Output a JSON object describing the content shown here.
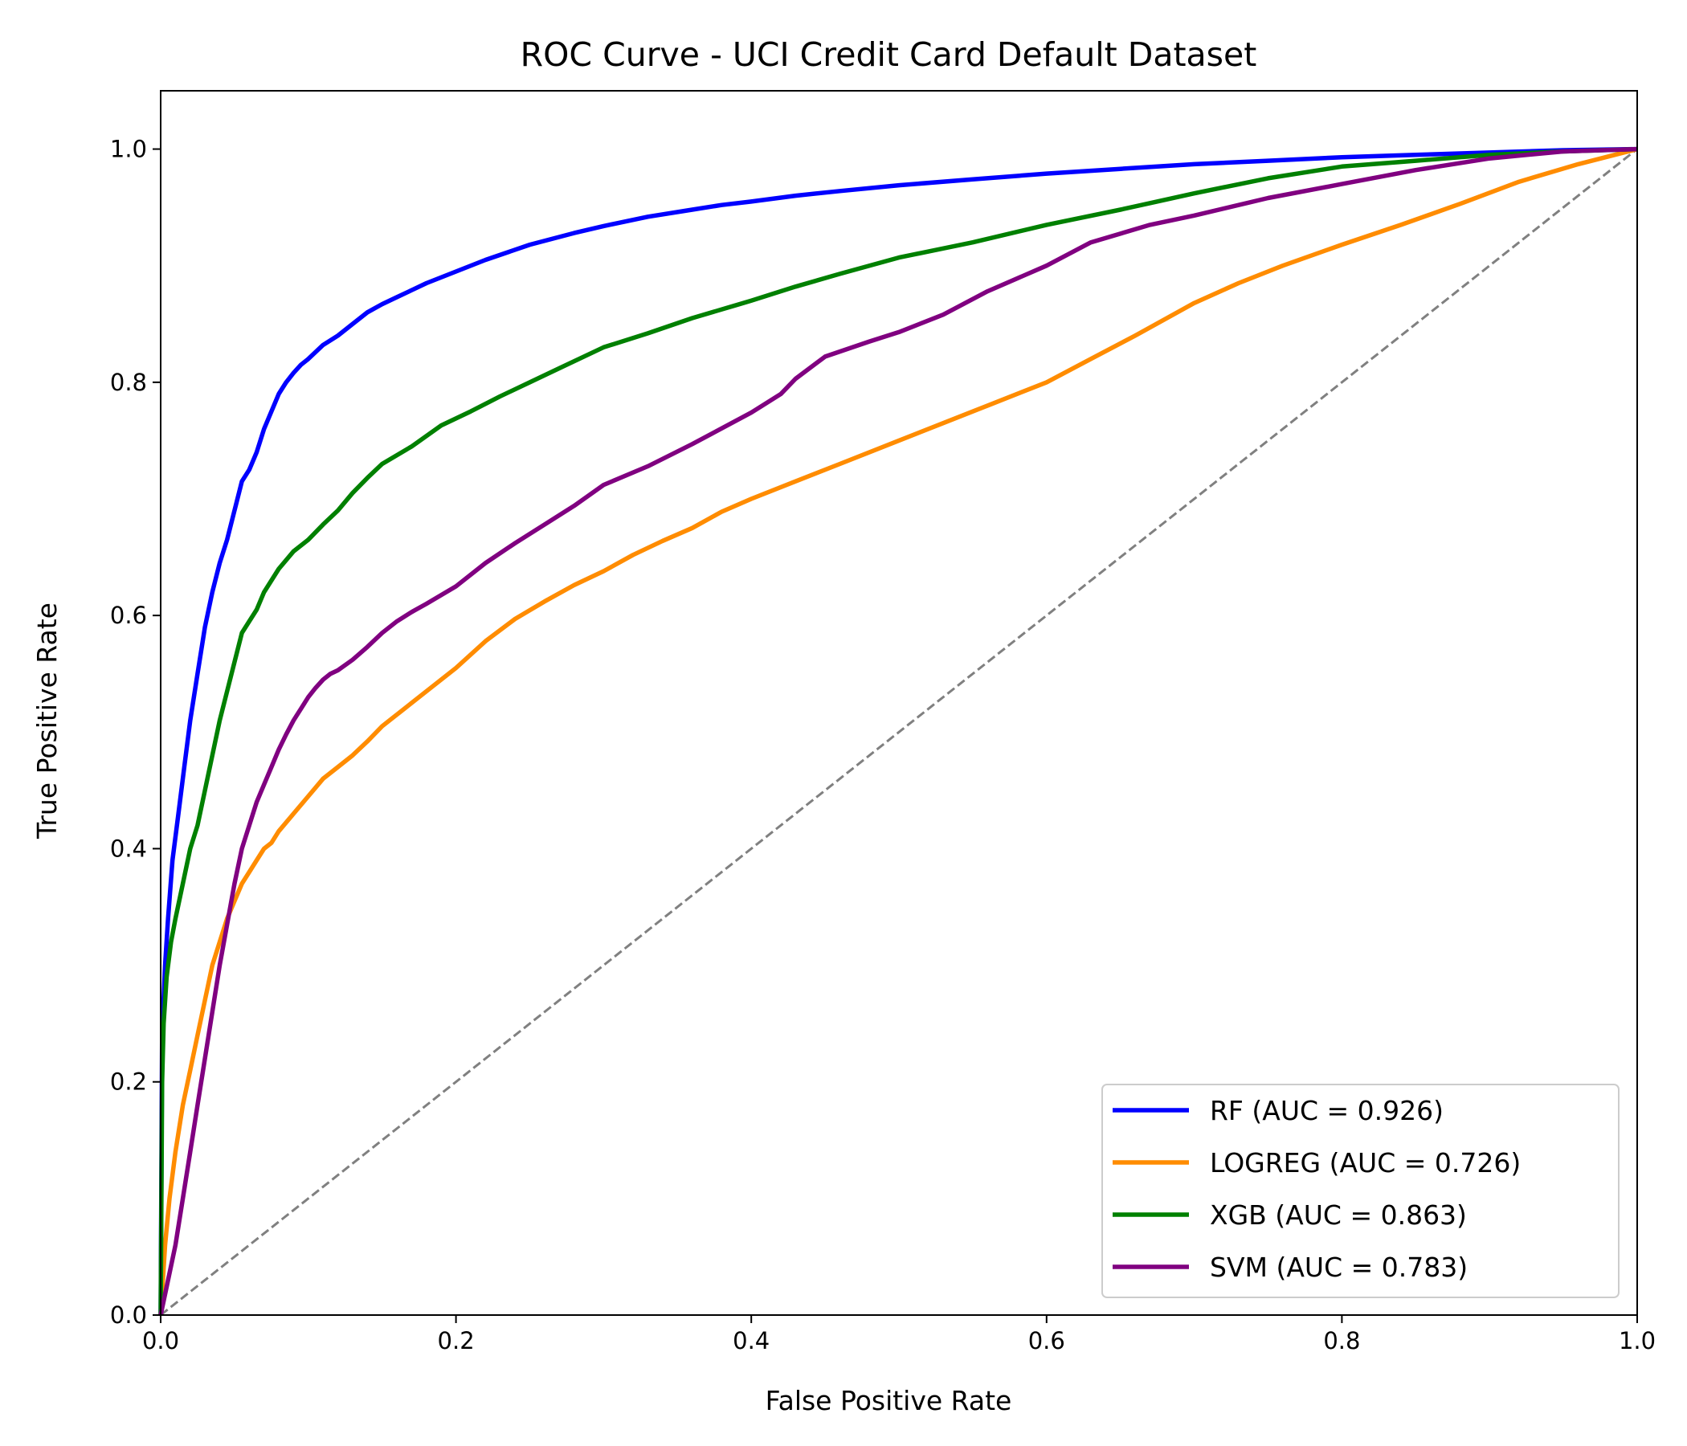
{
  "chart_data": {
    "type": "line",
    "title": "ROC Curve - UCI Credit Card Default Dataset",
    "xlabel": "False Positive Rate",
    "ylabel": "True Positive Rate",
    "xlim": [
      0.0,
      1.0
    ],
    "ylim": [
      0.0,
      1.05
    ],
    "xticks": [
      "0.0",
      "0.2",
      "0.4",
      "0.6",
      "0.8",
      "1.0"
    ],
    "yticks": [
      "0.0",
      "0.2",
      "0.4",
      "0.6",
      "0.8",
      "1.0"
    ],
    "grid": false,
    "legend_position": "lower-right",
    "reference_line": {
      "x": [
        0,
        1
      ],
      "y": [
        0,
        1
      ],
      "color": "#808080",
      "style": "dashed"
    },
    "series": [
      {
        "name": "RF (AUC = 0.926)",
        "color": "#0000ff",
        "x": [
          0.0,
          0.001,
          0.003,
          0.005,
          0.008,
          0.012,
          0.016,
          0.02,
          0.025,
          0.03,
          0.035,
          0.04,
          0.045,
          0.05,
          0.055,
          0.06,
          0.065,
          0.07,
          0.075,
          0.08,
          0.085,
          0.09,
          0.095,
          0.1,
          0.11,
          0.12,
          0.13,
          0.14,
          0.15,
          0.16,
          0.17,
          0.18,
          0.2,
          0.22,
          0.25,
          0.28,
          0.3,
          0.33,
          0.36,
          0.38,
          0.4,
          0.43,
          0.46,
          0.5,
          0.55,
          0.6,
          0.65,
          0.7,
          0.75,
          0.8,
          0.85,
          0.9,
          0.95,
          1.0
        ],
        "y": [
          0.0,
          0.24,
          0.3,
          0.34,
          0.39,
          0.43,
          0.47,
          0.51,
          0.55,
          0.59,
          0.62,
          0.645,
          0.665,
          0.69,
          0.715,
          0.725,
          0.74,
          0.76,
          0.775,
          0.79,
          0.8,
          0.808,
          0.815,
          0.82,
          0.832,
          0.84,
          0.85,
          0.86,
          0.867,
          0.873,
          0.879,
          0.885,
          0.895,
          0.905,
          0.918,
          0.928,
          0.934,
          0.942,
          0.948,
          0.952,
          0.955,
          0.96,
          0.964,
          0.969,
          0.974,
          0.979,
          0.983,
          0.987,
          0.99,
          0.993,
          0.995,
          0.997,
          0.999,
          1.0
        ]
      },
      {
        "name": "LOGREG (AUC = 0.726)",
        "color": "#ff8c00",
        "x": [
          0.0,
          0.003,
          0.006,
          0.01,
          0.015,
          0.02,
          0.025,
          0.03,
          0.035,
          0.04,
          0.045,
          0.05,
          0.055,
          0.06,
          0.065,
          0.07,
          0.075,
          0.08,
          0.09,
          0.1,
          0.11,
          0.12,
          0.13,
          0.14,
          0.15,
          0.16,
          0.18,
          0.2,
          0.22,
          0.24,
          0.26,
          0.28,
          0.3,
          0.32,
          0.34,
          0.36,
          0.38,
          0.4,
          0.43,
          0.46,
          0.5,
          0.53,
          0.56,
          0.6,
          0.63,
          0.66,
          0.7,
          0.73,
          0.76,
          0.8,
          0.84,
          0.88,
          0.92,
          0.96,
          1.0
        ],
        "y": [
          0.0,
          0.06,
          0.1,
          0.14,
          0.18,
          0.21,
          0.24,
          0.27,
          0.3,
          0.32,
          0.34,
          0.355,
          0.37,
          0.38,
          0.39,
          0.4,
          0.405,
          0.415,
          0.43,
          0.445,
          0.46,
          0.47,
          0.48,
          0.492,
          0.505,
          0.515,
          0.535,
          0.555,
          0.578,
          0.597,
          0.612,
          0.626,
          0.638,
          0.652,
          0.664,
          0.675,
          0.689,
          0.7,
          0.715,
          0.73,
          0.75,
          0.765,
          0.78,
          0.8,
          0.82,
          0.84,
          0.868,
          0.885,
          0.9,
          0.918,
          0.935,
          0.953,
          0.972,
          0.987,
          1.0
        ]
      },
      {
        "name": "XGB (AUC = 0.863)",
        "color": "#008000",
        "x": [
          0.0,
          0.001,
          0.002,
          0.004,
          0.007,
          0.01,
          0.015,
          0.02,
          0.025,
          0.03,
          0.035,
          0.04,
          0.045,
          0.05,
          0.055,
          0.06,
          0.065,
          0.07,
          0.08,
          0.09,
          0.1,
          0.11,
          0.12,
          0.13,
          0.14,
          0.15,
          0.17,
          0.19,
          0.21,
          0.23,
          0.25,
          0.27,
          0.3,
          0.33,
          0.36,
          0.4,
          0.43,
          0.46,
          0.5,
          0.55,
          0.6,
          0.65,
          0.7,
          0.75,
          0.8,
          0.85,
          0.9,
          0.95,
          1.0
        ],
        "y": [
          0.0,
          0.2,
          0.25,
          0.29,
          0.32,
          0.34,
          0.37,
          0.4,
          0.42,
          0.45,
          0.48,
          0.51,
          0.535,
          0.56,
          0.585,
          0.595,
          0.605,
          0.62,
          0.64,
          0.655,
          0.665,
          0.678,
          0.69,
          0.705,
          0.718,
          0.73,
          0.745,
          0.763,
          0.775,
          0.788,
          0.8,
          0.812,
          0.83,
          0.842,
          0.855,
          0.87,
          0.882,
          0.893,
          0.907,
          0.92,
          0.935,
          0.948,
          0.962,
          0.975,
          0.985,
          0.99,
          0.995,
          0.998,
          1.0
        ]
      },
      {
        "name": "SVM (AUC = 0.783)",
        "color": "#800080",
        "x": [
          0.0,
          0.005,
          0.01,
          0.015,
          0.02,
          0.025,
          0.03,
          0.035,
          0.04,
          0.045,
          0.05,
          0.055,
          0.06,
          0.065,
          0.07,
          0.075,
          0.08,
          0.085,
          0.09,
          0.095,
          0.1,
          0.105,
          0.11,
          0.115,
          0.12,
          0.13,
          0.14,
          0.15,
          0.16,
          0.17,
          0.18,
          0.2,
          0.22,
          0.24,
          0.26,
          0.28,
          0.3,
          0.33,
          0.36,
          0.4,
          0.42,
          0.43,
          0.45,
          0.48,
          0.5,
          0.53,
          0.56,
          0.6,
          0.63,
          0.67,
          0.7,
          0.75,
          0.8,
          0.85,
          0.9,
          0.95,
          1.0
        ],
        "y": [
          0.0,
          0.03,
          0.06,
          0.1,
          0.14,
          0.18,
          0.22,
          0.26,
          0.3,
          0.335,
          0.37,
          0.4,
          0.42,
          0.44,
          0.455,
          0.47,
          0.485,
          0.498,
          0.51,
          0.52,
          0.53,
          0.538,
          0.545,
          0.55,
          0.553,
          0.562,
          0.573,
          0.585,
          0.595,
          0.603,
          0.61,
          0.625,
          0.645,
          0.662,
          0.678,
          0.694,
          0.712,
          0.728,
          0.747,
          0.774,
          0.79,
          0.803,
          0.822,
          0.835,
          0.843,
          0.858,
          0.878,
          0.9,
          0.92,
          0.935,
          0.943,
          0.958,
          0.97,
          0.982,
          0.992,
          0.998,
          1.0
        ]
      }
    ]
  }
}
